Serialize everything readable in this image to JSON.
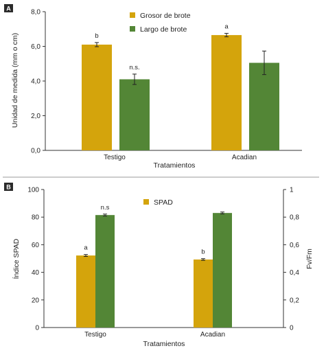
{
  "chart_data": [
    {
      "panel": "A",
      "type": "bar",
      "xlabel": "Tratamientos",
      "ylabel": "Unidad de medida (mm o cm)",
      "ylim": [
        0,
        8
      ],
      "yticks": [
        "0,0",
        "2,0",
        "4,0",
        "6,0",
        "8,0"
      ],
      "categories": [
        "Testigo",
        "Acadian"
      ],
      "series": [
        {
          "name": "Grosor de brote",
          "color": "#d4a40c",
          "values": [
            6.1,
            6.65
          ],
          "errors": [
            0.12,
            0.1
          ],
          "labels": [
            "b",
            "a"
          ]
        },
        {
          "name": "Largo de brote",
          "color": "#538636",
          "values": [
            4.1,
            5.05
          ],
          "errors": [
            0.3,
            0.68
          ],
          "labels": [
            "n.s.",
            ""
          ]
        }
      ],
      "grid": false,
      "legend": "top-right"
    },
    {
      "panel": "B",
      "type": "bar",
      "xlabel": "Tratamientos",
      "ylabel": "Índice SPAD",
      "y2label": "Fv/Fm",
      "ylim": [
        0,
        100
      ],
      "y2lim": [
        0,
        1
      ],
      "yticks": [
        "0",
        "20",
        "40",
        "60",
        "80",
        "100"
      ],
      "y2ticks": [
        "0",
        "0,2",
        "0,4",
        "0,6",
        "0,8",
        "1"
      ],
      "categories": [
        "Testigo",
        "Acadian"
      ],
      "series": [
        {
          "name": "SPAD",
          "axis": "left",
          "color": "#d4a40c",
          "values": [
            52.2,
            49.3
          ],
          "errors": [
            0.7,
            0.6
          ],
          "labels": [
            "a",
            "b"
          ]
        },
        {
          "name": "",
          "axis": "right",
          "color": "#538636",
          "values": [
            0.815,
            0.83
          ],
          "errors": [
            0.007,
            0.007
          ],
          "labels": [
            "n.s",
            ""
          ]
        }
      ],
      "grid": false,
      "legend": "top-center"
    }
  ]
}
